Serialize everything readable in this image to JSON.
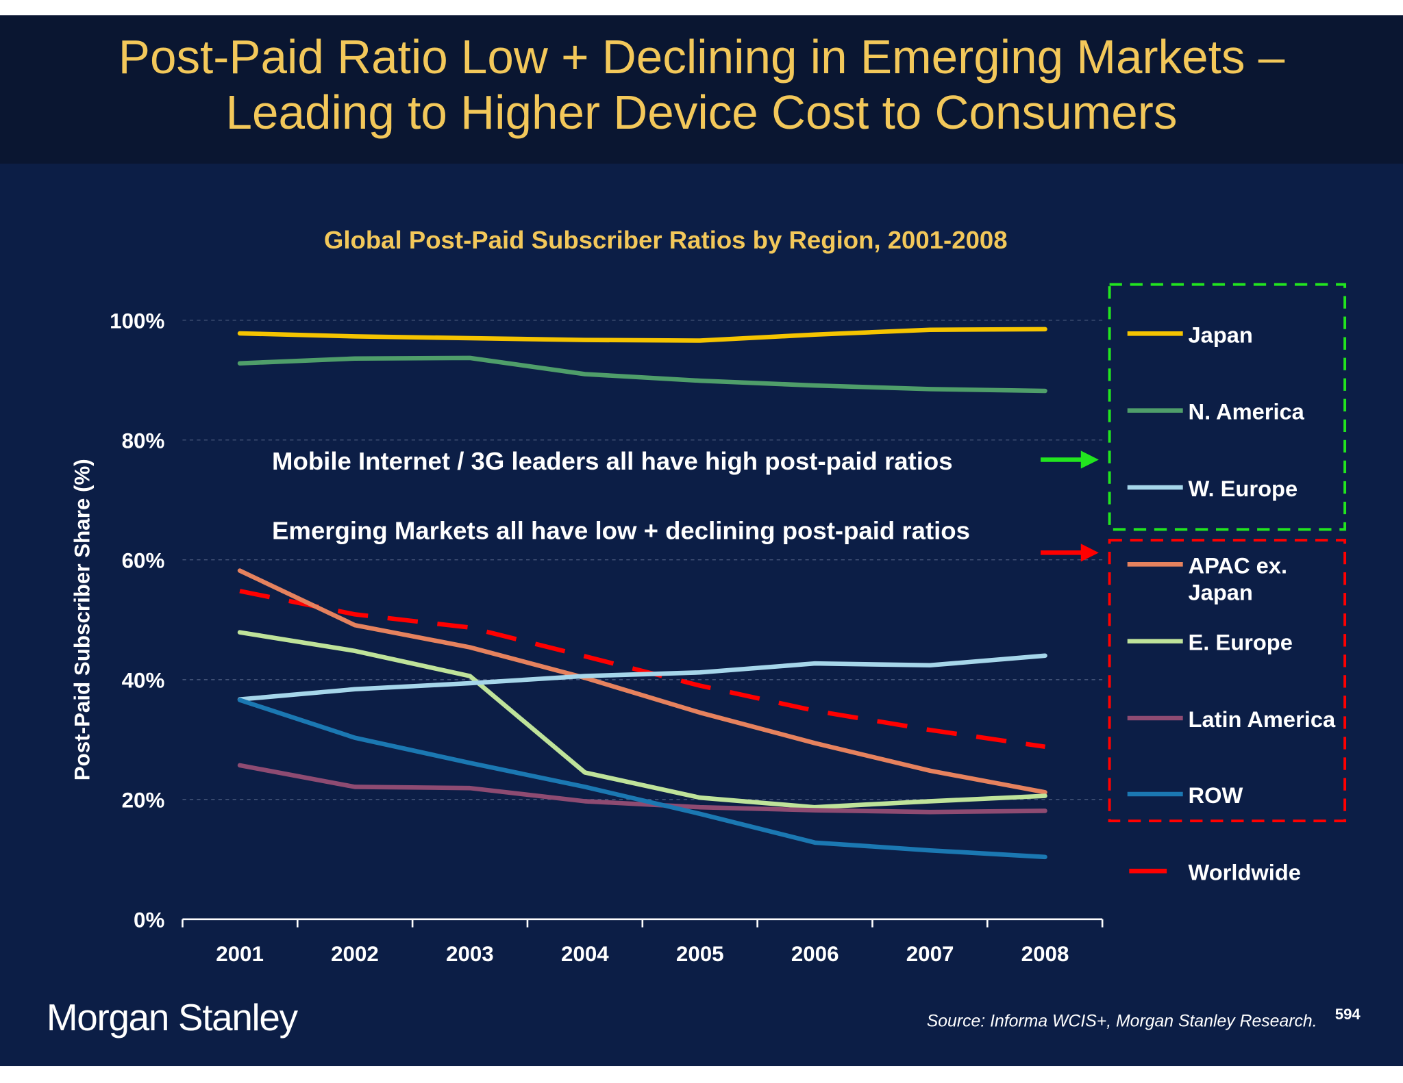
{
  "slide": {
    "title_line1": "Post-Paid Ratio Low + Declining in Emerging Markets –",
    "title_line2": "Leading to Higher Device Cost to Consumers",
    "logo": "Morgan Stanley",
    "source": "Source: Informa WCIS+, Morgan Stanley Research.",
    "page_number": "594",
    "colors": {
      "background": "#0c1e46",
      "header": "#0a1631",
      "title": "#f3c85a"
    }
  },
  "chart_data": {
    "type": "line",
    "title": "Global Post-Paid Subscriber Ratios by Region, 2001-2008",
    "xlabel": "",
    "ylabel": "Post-Paid Subscriber Share (%)",
    "ylim": [
      0,
      100
    ],
    "yticks": [
      "0%",
      "20%",
      "40%",
      "60%",
      "80%",
      "100%"
    ],
    "x": [
      "2001",
      "2002",
      "2003",
      "2004",
      "2005",
      "2006",
      "2007",
      "2008"
    ],
    "grid": true,
    "legend_placement": "right",
    "annotations": [
      {
        "text": "Mobile Internet / 3G leaders all have high post-paid ratios",
        "arrow_color": "#22e51f"
      },
      {
        "text": "Emerging Markets all have low + declining post-paid ratios",
        "arrow_color": "#ff0000"
      }
    ],
    "series": [
      {
        "name": "Japan",
        "color": "#f5c400",
        "dashed": false,
        "values": [
          97.8,
          97.3,
          97.0,
          96.7,
          96.6,
          97.6,
          98.4,
          98.5
        ]
      },
      {
        "name": "N. America",
        "color": "#4f9e6a",
        "dashed": false,
        "values": [
          92.8,
          93.6,
          93.7,
          91.0,
          89.9,
          89.1,
          88.5,
          88.2
        ]
      },
      {
        "name": "W. Europe",
        "color": "#a6d6ea",
        "dashed": false,
        "values": [
          36.7,
          38.4,
          39.4,
          40.6,
          41.2,
          42.7,
          42.4,
          44.0
        ]
      },
      {
        "name": "APAC ex. Japan",
        "color": "#e6825e",
        "dashed": false,
        "values": [
          58.2,
          49.1,
          45.4,
          40.3,
          34.5,
          29.4,
          24.8,
          21.2
        ]
      },
      {
        "name": "E. Europe",
        "color": "#bfe39a",
        "dashed": false,
        "values": [
          47.9,
          44.8,
          40.6,
          24.5,
          20.3,
          18.7,
          19.7,
          20.6
        ]
      },
      {
        "name": "Latin America",
        "color": "#8e4b72",
        "dashed": false,
        "values": [
          25.7,
          22.1,
          21.9,
          19.7,
          18.7,
          18.2,
          17.9,
          18.1
        ]
      },
      {
        "name": "ROW",
        "color": "#1b78b2",
        "dashed": false,
        "values": [
          36.6,
          30.3,
          26.1,
          22.1,
          17.6,
          12.8,
          11.5,
          10.4
        ]
      },
      {
        "name": "Worldwide",
        "color": "#ff0000",
        "dashed": true,
        "values": [
          54.8,
          50.9,
          48.7,
          43.9,
          39.0,
          34.8,
          31.6,
          28.8
        ]
      }
    ]
  }
}
